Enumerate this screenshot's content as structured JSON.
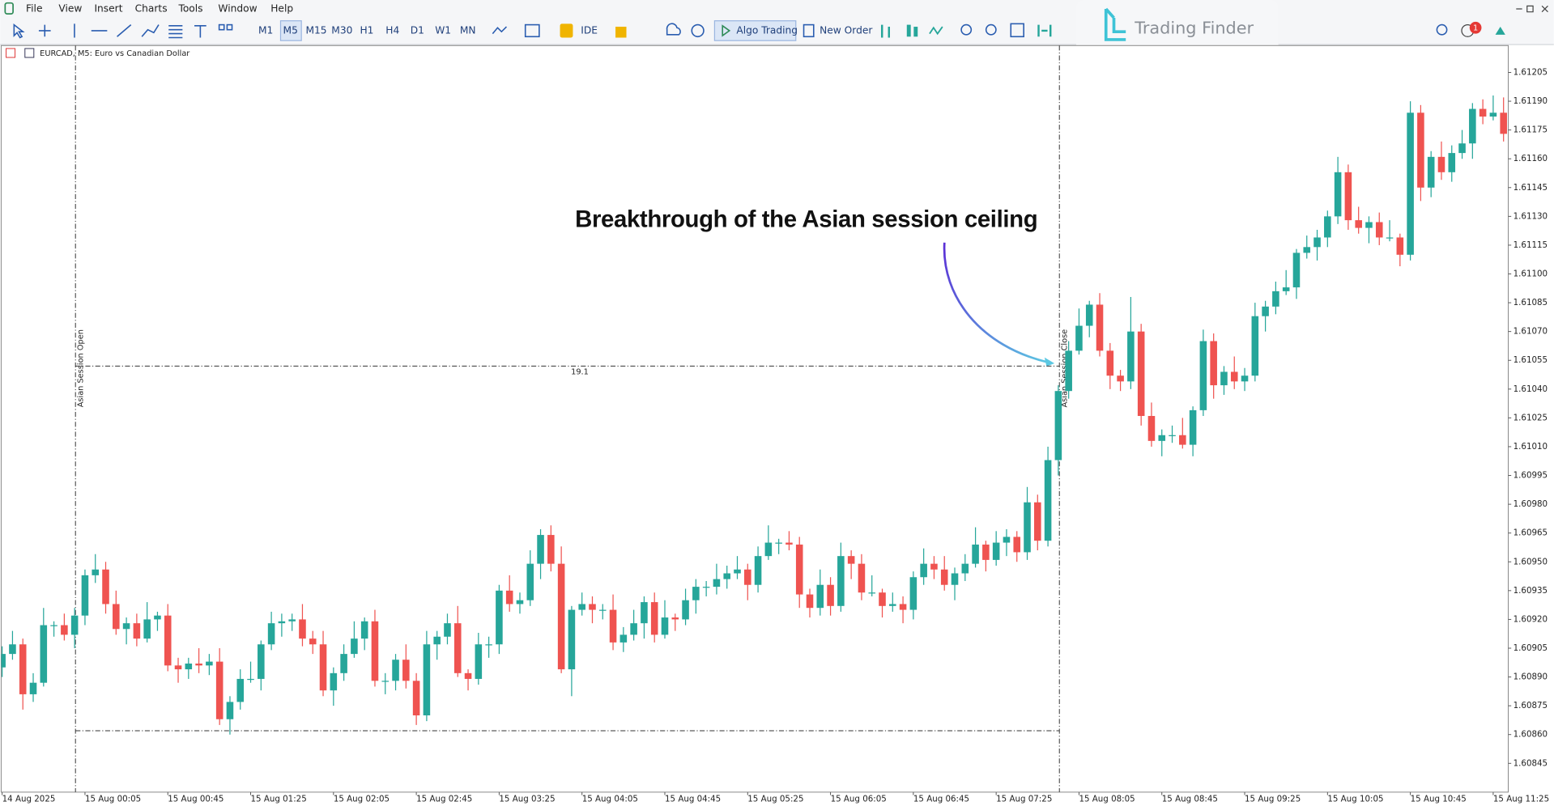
{
  "ui": {
    "menu": [
      "File",
      "View",
      "Insert",
      "Charts",
      "Tools",
      "Window",
      "Help"
    ],
    "timeframes": [
      "M1",
      "M5",
      "M15",
      "M30",
      "H1",
      "H4",
      "D1",
      "W1",
      "MN"
    ],
    "ide": "IDE",
    "algo_trading": "Algo Trading",
    "new_order": "New Order",
    "brand": "Trading Finder",
    "notifications": 1
  },
  "chart_data": {
    "type": "candlestick",
    "title": "EURCAD, M5:  Euro vs Canadian Dollar",
    "annotation": "Breakthrough of the Asian session ceiling",
    "session_open_label": "Asian Session Open",
    "session_close_label": "Asian Session Close",
    "session_high": 1.61052,
    "session_low": 1.60862,
    "range_label": "19.1",
    "up_color": "#26a69a",
    "down_color": "#ef5350",
    "categories": [
      "14 Aug 2025",
      null,
      null,
      null,
      null,
      null,
      null,
      null,
      "15 Aug 00:05",
      null,
      null,
      null,
      null,
      null,
      null,
      null,
      "15 Aug 00:45",
      null,
      null,
      null,
      null,
      null,
      null,
      null,
      "15 Aug 01:25",
      null,
      null,
      null,
      null,
      null,
      null,
      null,
      "15 Aug 02:05",
      null,
      null,
      null,
      null,
      null,
      null,
      null,
      "15 Aug 02:45",
      null,
      null,
      null,
      null,
      null,
      null,
      null,
      "15 Aug 03:25",
      null,
      null,
      null,
      null,
      null,
      null,
      null,
      "15 Aug 04:05",
      null,
      null,
      null,
      null,
      null,
      null,
      null,
      "15 Aug 04:45",
      null,
      null,
      null,
      null,
      null,
      null,
      null,
      "15 Aug 05:25",
      null,
      null,
      null,
      null,
      null,
      null,
      null,
      "15 Aug 06:05",
      null,
      null,
      null,
      null,
      null,
      null,
      null,
      "15 Aug 06:45",
      null,
      null,
      null,
      null,
      null,
      null,
      null,
      "15 Aug 07:25",
      null,
      null,
      null,
      null,
      null,
      null,
      null,
      "15 Aug 08:05",
      null,
      null,
      null,
      null,
      null,
      null,
      null,
      "15 Aug 08:45",
      null,
      null,
      null,
      null,
      null,
      null,
      null,
      "15 Aug 09:25",
      null,
      null,
      null,
      null,
      null,
      null,
      null,
      "15 Aug 10:05",
      null,
      null,
      null,
      null,
      null,
      null,
      null,
      "15 Aug 10:45",
      null,
      null,
      null,
      null,
      null,
      null,
      null,
      "15 Aug 11:25",
      null
    ],
    "open": [
      1.60895,
      1.60902,
      1.60907,
      1.60881,
      1.60887,
      1.60917,
      1.60917,
      1.60912,
      1.60922,
      1.60943,
      1.60946,
      1.60928,
      1.60915,
      1.60918,
      1.6091,
      1.6092,
      1.60922,
      1.60896,
      1.60894,
      1.60897,
      1.60896,
      1.60898,
      1.60868,
      1.60877,
      1.60889,
      1.60889,
      1.60907,
      1.60918,
      1.60919,
      1.6092,
      1.6091,
      1.60907,
      1.60883,
      1.60892,
      1.60902,
      1.6091,
      1.60919,
      1.60888,
      1.60888,
      1.60899,
      1.60888,
      1.6087,
      1.60907,
      1.60911,
      1.60918,
      1.60892,
      1.60889,
      1.60907,
      1.60907,
      1.60935,
      1.60928,
      1.6093,
      1.60949,
      1.60964,
      1.60949,
      1.60894,
      1.60925,
      1.60928,
      1.60925,
      1.60925,
      1.60908,
      1.60912,
      1.60918,
      1.60929,
      1.60912,
      1.60921,
      1.6092,
      1.6093,
      1.60937,
      1.60937,
      1.60941,
      1.60944,
      1.60946,
      1.60938,
      1.60953,
      1.6096,
      1.6096,
      1.60959,
      1.60933,
      1.60926,
      1.60938,
      1.60927,
      1.60953,
      1.60949,
      1.60934,
      1.60934,
      1.60927,
      1.60928,
      1.60925,
      1.60942,
      1.60949,
      1.60946,
      1.60938,
      1.60944,
      1.60949,
      1.60959,
      1.60951,
      1.6096,
      1.60963,
      1.60955,
      1.60981,
      1.60961,
      1.61003,
      1.61039,
      1.6106,
      1.61073,
      1.61084,
      1.6106,
      1.61047,
      1.61044,
      1.6107,
      1.61026,
      1.61013,
      1.61016,
      1.61016,
      1.61011,
      1.61029,
      1.61065,
      1.61042,
      1.61049,
      1.61044,
      1.61047,
      1.61078,
      1.61083,
      1.61091,
      1.61093,
      1.61111,
      1.61114,
      1.61119,
      1.6113,
      1.61153,
      1.61128,
      1.61124,
      1.61127,
      1.61119,
      1.61119,
      1.6111,
      1.61184,
      1.61145,
      1.61161,
      1.61153,
      1.61163,
      1.61168,
      1.61186,
      1.61182,
      1.61184
    ],
    "high": [
      1.60906,
      1.60914,
      1.6091,
      1.60892,
      1.60926,
      1.60919,
      1.60923,
      1.60926,
      1.60946,
      1.60954,
      1.6095,
      1.60935,
      1.60921,
      1.60923,
      1.60929,
      1.60924,
      1.60928,
      1.609,
      1.609,
      1.60905,
      1.60902,
      1.60905,
      1.6088,
      1.60894,
      1.60898,
      1.60909,
      1.60924,
      1.60923,
      1.60923,
      1.60928,
      1.60914,
      1.60914,
      1.60895,
      1.60907,
      1.60919,
      1.60921,
      1.60925,
      1.60892,
      1.60902,
      1.60907,
      1.60892,
      1.60914,
      1.60914,
      1.60923,
      1.60927,
      1.60894,
      1.60913,
      1.60911,
      1.60938,
      1.60943,
      1.60934,
      1.60956,
      1.60967,
      1.60969,
      1.60958,
      1.60927,
      1.60934,
      1.60932,
      1.60928,
      1.60933,
      1.60916,
      1.60925,
      1.60932,
      1.60934,
      1.6093,
      1.60923,
      1.60936,
      1.60941,
      1.6094,
      1.60949,
      1.60948,
      1.60953,
      1.60949,
      1.60958,
      1.60969,
      1.60962,
      1.60966,
      1.60963,
      1.60936,
      1.60946,
      1.60942,
      1.6096,
      1.60956,
      1.60954,
      1.60943,
      1.60936,
      1.60934,
      1.60932,
      1.60945,
      1.60957,
      1.60953,
      1.60953,
      1.60947,
      1.60954,
      1.60968,
      1.60961,
      1.60966,
      1.60967,
      1.60966,
      1.60989,
      1.60985,
      1.6101,
      1.61042,
      1.61065,
      1.61082,
      1.61086,
      1.6109,
      1.61064,
      1.6105,
      1.61088,
      1.61074,
      1.61033,
      1.61019,
      1.61021,
      1.61025,
      1.61031,
      1.61071,
      1.61069,
      1.61052,
      1.61057,
      1.61051,
      1.61085,
      1.61086,
      1.61096,
      1.61102,
      1.61113,
      1.6112,
      1.61123,
      1.61133,
      1.61161,
      1.61157,
      1.61135,
      1.6113,
      1.61132,
      1.61128,
      1.61121,
      1.6119,
      1.61188,
      1.61164,
      1.61169,
      1.61167,
      1.61175,
      1.61189,
      1.61191,
      1.61193,
      1.61192
    ],
    "low": [
      1.6089,
      1.60899,
      1.60873,
      1.60877,
      1.60885,
      1.60911,
      1.60909,
      1.60905,
      1.60917,
      1.60939,
      1.60923,
      1.60912,
      1.60907,
      1.60906,
      1.60908,
      1.60914,
      1.60893,
      1.60887,
      1.60889,
      1.60892,
      1.60891,
      1.60865,
      1.6086,
      1.60873,
      1.60887,
      1.60883,
      1.60904,
      1.60911,
      1.60914,
      1.60906,
      1.60902,
      1.6088,
      1.60875,
      1.60888,
      1.609,
      1.60904,
      1.60885,
      1.60881,
      1.60883,
      1.60884,
      1.60865,
      1.60867,
      1.60899,
      1.60907,
      1.6089,
      1.60883,
      1.60886,
      1.609,
      1.60902,
      1.60924,
      1.60923,
      1.60927,
      1.60941,
      1.60945,
      1.60892,
      1.6088,
      1.60922,
      1.60918,
      1.6092,
      1.60904,
      1.60903,
      1.60909,
      1.6091,
      1.60908,
      1.6091,
      1.60914,
      1.60917,
      1.60923,
      1.60932,
      1.60933,
      1.60936,
      1.60941,
      1.6093,
      1.60934,
      1.60951,
      1.60954,
      1.60956,
      1.60926,
      1.60921,
      1.60922,
      1.60922,
      1.60924,
      1.60941,
      1.6093,
      1.60932,
      1.60921,
      1.60924,
      1.60918,
      1.6092,
      1.60938,
      1.60941,
      1.60935,
      1.6093,
      1.6094,
      1.60947,
      1.60945,
      1.60948,
      1.60953,
      1.6095,
      1.60951,
      1.60956,
      1.60958,
      1.60995,
      1.61035,
      1.61058,
      1.61067,
      1.61057,
      1.6104,
      1.61039,
      1.6104,
      1.61021,
      1.6101,
      1.61005,
      1.61012,
      1.61009,
      1.61005,
      1.61026,
      1.61035,
      1.61037,
      1.6104,
      1.61039,
      1.61044,
      1.6107,
      1.61079,
      1.61089,
      1.61087,
      1.61108,
      1.61107,
      1.61114,
      1.61126,
      1.61123,
      1.61121,
      1.61116,
      1.61115,
      1.61117,
      1.61104,
      1.61107,
      1.61138,
      1.6114,
      1.61149,
      1.61148,
      1.6116,
      1.6116,
      1.61178,
      1.6118,
      1.61169
    ],
    "close": [
      1.60902,
      1.60907,
      1.60881,
      1.60887,
      1.60917,
      1.60917,
      1.60912,
      1.60922,
      1.60943,
      1.60946,
      1.60928,
      1.60915,
      1.60918,
      1.6091,
      1.6092,
      1.60922,
      1.60896,
      1.60894,
      1.60897,
      1.60896,
      1.60898,
      1.60868,
      1.60877,
      1.60889,
      1.60889,
      1.60907,
      1.60918,
      1.60919,
      1.6092,
      1.6091,
      1.60907,
      1.60883,
      1.60892,
      1.60902,
      1.6091,
      1.60919,
      1.60888,
      1.60888,
      1.60899,
      1.60888,
      1.6087,
      1.60907,
      1.60911,
      1.60918,
      1.60892,
      1.60889,
      1.60907,
      1.60907,
      1.60935,
      1.60928,
      1.6093,
      1.60949,
      1.60964,
      1.60949,
      1.60894,
      1.60925,
      1.60928,
      1.60925,
      1.60925,
      1.60908,
      1.60912,
      1.60918,
      1.60929,
      1.60912,
      1.60921,
      1.6092,
      1.6093,
      1.60937,
      1.60937,
      1.60941,
      1.60944,
      1.60946,
      1.60938,
      1.60953,
      1.6096,
      1.6096,
      1.60959,
      1.60933,
      1.60926,
      1.60938,
      1.60927,
      1.60953,
      1.60949,
      1.60934,
      1.60934,
      1.60927,
      1.60928,
      1.60925,
      1.60942,
      1.60949,
      1.60946,
      1.60938,
      1.60944,
      1.60949,
      1.60959,
      1.60951,
      1.6096,
      1.60963,
      1.60955,
      1.60981,
      1.60961,
      1.61003,
      1.61039,
      1.6106,
      1.61073,
      1.61084,
      1.6106,
      1.61047,
      1.61044,
      1.6107,
      1.61026,
      1.61013,
      1.61016,
      1.61016,
      1.61011,
      1.61029,
      1.61065,
      1.61042,
      1.61049,
      1.61044,
      1.61047,
      1.61078,
      1.61083,
      1.61091,
      1.61093,
      1.61111,
      1.61114,
      1.61119,
      1.6113,
      1.61153,
      1.61128,
      1.61124,
      1.61127,
      1.61119,
      1.61119,
      1.6111,
      1.61184,
      1.61145,
      1.61161,
      1.61153,
      1.61163,
      1.61168,
      1.61186,
      1.61182,
      1.61184,
      1.61173
    ],
    "ylim": [
      1.6083,
      1.61219
    ],
    "yticks": [
      1.60845,
      {
        "value": 1.6086,
        "label": "1.60860"
      },
      1.60875,
      {
        "value": 1.6089,
        "label": "1.60890"
      },
      1.60905,
      {
        "value": 1.6092,
        "label": "1.60920"
      },
      1.60935,
      {
        "value": 1.6095,
        "label": "1.60950"
      },
      1.60965,
      {
        "value": 1.6098,
        "label": "1.60980"
      },
      1.60995,
      {
        "value": 1.6101,
        "label": "1.61010"
      },
      1.61025,
      {
        "value": 1.6104,
        "label": "1.61040"
      },
      1.61055,
      {
        "value": 1.6107,
        "label": "1.61070"
      },
      1.61085,
      {
        "value": 1.611,
        "label": "1.61100"
      },
      1.61115,
      {
        "value": 1.6113,
        "label": "1.61130"
      },
      1.61145,
      {
        "value": 1.6116,
        "label": "1.61160"
      },
      1.61175,
      {
        "value": 1.6119,
        "label": "1.61190"
      },
      1.61205
    ]
  }
}
